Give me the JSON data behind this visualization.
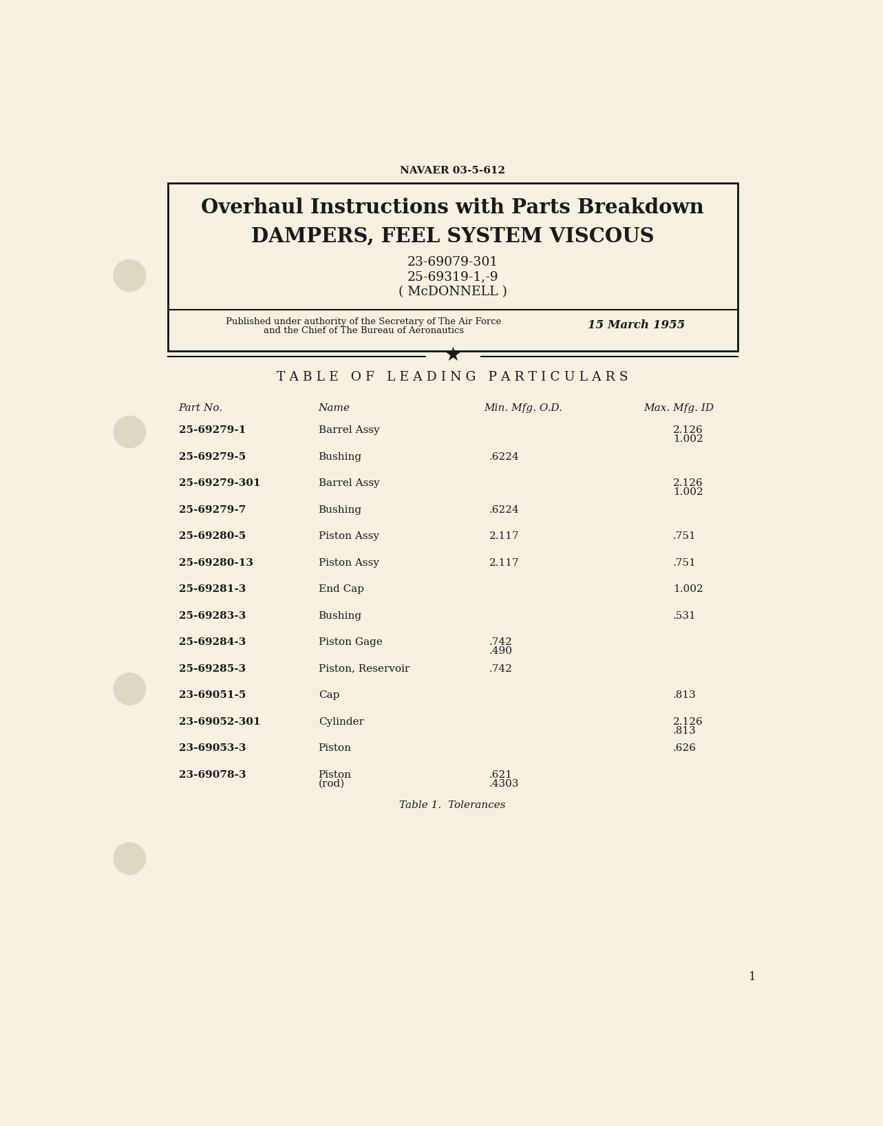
{
  "bg_color": "#f5f0e0",
  "header_doc_num": "NAVAER 03-5-612",
  "box_title_line1": "Overhaul Instructions with Parts Breakdown",
  "box_title_line2": "DAMPERS, FEEL SYSTEM VISCOUS",
  "box_part1": "23-69079-301",
  "box_part2": "25-69319-1,-9",
  "box_mfr": "( McDONNELL )",
  "box_pub_line1": "Published under authority of the Secretary of The Air Force",
  "box_pub_line2": "and the Chief of The Bureau of Aeronautics",
  "box_date": "15 March 1955",
  "table_title": "T A B L E   O F   L E A D I N G   P A R T I C U L A R S",
  "col_headers": [
    "Part No.",
    "Name",
    "Min. Mfg. O.D.",
    "Max. Mfg. ID"
  ],
  "rows": [
    {
      "part": "25-69279-1",
      "name": "Barrel Assy",
      "od": "",
      "od2": "",
      "id_val": "2.126",
      "id2": "1.002"
    },
    {
      "part": "25-69279-5",
      "name": "Bushing",
      "od": ".6224",
      "od2": "",
      "id_val": "",
      "id2": ""
    },
    {
      "part": "25-69279-301",
      "name": "Barrel Assy",
      "od": "",
      "od2": "",
      "id_val": "2.126",
      "id2": "1.002"
    },
    {
      "part": "25-69279-7",
      "name": "Bushing",
      "od": ".6224",
      "od2": "",
      "id_val": "",
      "id2": ""
    },
    {
      "part": "25-69280-5",
      "name": "Piston Assy",
      "od": "2.117",
      "od2": "",
      "id_val": ".751",
      "id2": ""
    },
    {
      "part": "25-69280-13",
      "name": "Piston Assy",
      "od": "2.117",
      "od2": "",
      "id_val": ".751",
      "id2": ""
    },
    {
      "part": "25-69281-3",
      "name": "End Cap",
      "od": "",
      "od2": "",
      "id_val": "1.002",
      "id2": ""
    },
    {
      "part": "25-69283-3",
      "name": "Bushing",
      "od": "",
      "od2": "",
      "id_val": ".531",
      "id2": ""
    },
    {
      "part": "25-69284-3",
      "name": "Piston Gage",
      "od": ".742",
      "od2": ".490",
      "id_val": "",
      "id2": ""
    },
    {
      "part": "25-69285-3",
      "name": "Piston, Reservoir",
      "od": ".742",
      "od2": "",
      "id_val": "",
      "id2": ""
    },
    {
      "part": "23-69051-5",
      "name": "Cap",
      "od": "",
      "od2": "",
      "id_val": ".813",
      "id2": ""
    },
    {
      "part": "23-69052-301",
      "name": "Cylinder",
      "od": "",
      "od2": "",
      "id_val": "2.126",
      "id2": ".813"
    },
    {
      "part": "23-69053-3",
      "name": "Piston",
      "name2": "",
      "od": "",
      "od2": "",
      "id_val": ".626",
      "id2": ""
    },
    {
      "part": "23-69078-3",
      "name": "Piston",
      "name2": "(rod)",
      "od": ".621",
      "od2": ".4303",
      "id_val": "",
      "id2": ""
    }
  ],
  "table_caption": "Table 1.  Tolerances",
  "page_num": "1",
  "text_color": "#1a1a1a",
  "hole_color": "#ddd8c4"
}
